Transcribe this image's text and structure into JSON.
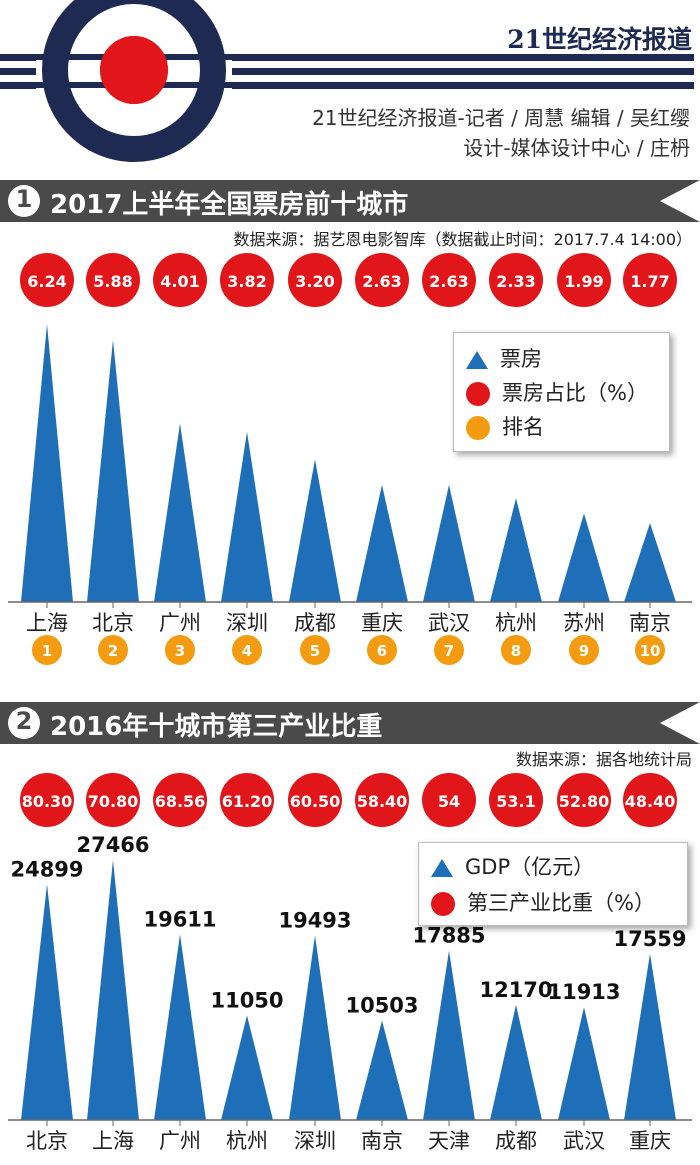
{
  "header": {
    "paper_name": "21世纪经济报道",
    "credit_line1": "21世纪经济报道-记者 / 周慧   编辑 / 吴红缨",
    "credit_line2": "设计-媒体设计中心 / 庄枬"
  },
  "section1": {
    "number": "1",
    "title": "2017上半年全国票房前十城市",
    "source": "数据来源：据艺恩电影智库（数据截止时间：2017.7.4 14:00）",
    "legend": {
      "triangle": "票房",
      "red": "票房占比（%）",
      "orange": "排名"
    }
  },
  "section2": {
    "number": "2",
    "title": "2016年十城市第三产业比重",
    "source": "数据来源：据各地统计局",
    "legend": {
      "triangle": "GDP（亿元）",
      "red": "第三产业比重（%）"
    }
  },
  "colors": {
    "bar": "#1f6fb8",
    "red": "#e1161b",
    "orange": "#f39c12",
    "navy": "#1e2a52",
    "header": "#4a4a4a"
  },
  "chart_data": [
    {
      "type": "bar",
      "title": "2017上半年全国票房前十城市",
      "categories": [
        "上海",
        "北京",
        "广州",
        "深圳",
        "成都",
        "重庆",
        "武汉",
        "杭州",
        "苏州",
        "南京"
      ],
      "share_percent": [
        "6.24",
        "5.88",
        "4.01",
        "3.82",
        "3.20",
        "2.63",
        "2.63",
        "2.33",
        "1.99",
        "1.77"
      ],
      "ranks": [
        "1",
        "2",
        "3",
        "4",
        "5",
        "6",
        "7",
        "8",
        "9",
        "10"
      ],
      "relative_values": [
        6.24,
        5.88,
        4.01,
        3.82,
        3.2,
        2.63,
        2.63,
        2.33,
        1.99,
        1.77
      ],
      "ylim": [
        0,
        6.24
      ]
    },
    {
      "type": "bar",
      "title": "2016年十城市第三产业比重",
      "categories": [
        "北京",
        "上海",
        "广州",
        "杭州",
        "深圳",
        "南京",
        "天津",
        "成都",
        "武汉",
        "重庆"
      ],
      "values": [
        24899,
        27466,
        19611,
        11050,
        19493,
        10503,
        17885,
        12170,
        11913,
        17559
      ],
      "value_labels": [
        "24899",
        "27466",
        "19611",
        "11050",
        "19493",
        "10503",
        "17885",
        "12170",
        "11913",
        "17559"
      ],
      "share_percent": [
        "80.30",
        "70.80",
        "68.56",
        "61.20",
        "60.50",
        "58.40",
        "54",
        "53.1",
        "52.80",
        "48.40"
      ],
      "ylim": [
        0,
        27466
      ]
    }
  ]
}
